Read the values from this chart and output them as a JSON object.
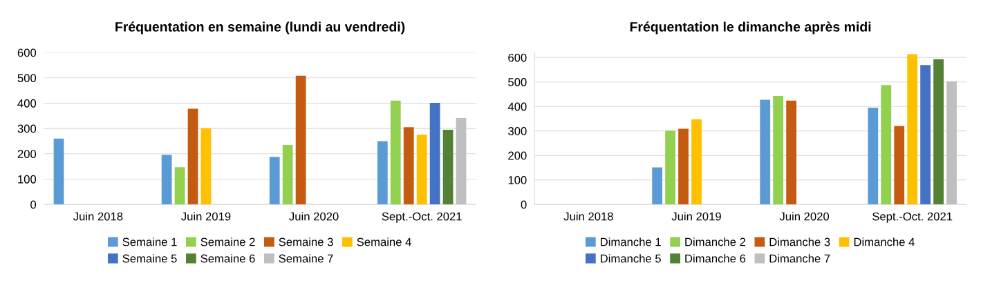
{
  "chart_data": [
    {
      "type": "bar",
      "title": "Fréquentation en semaine (lundi au vendredi)",
      "categories": [
        "Juin 2018",
        "Juin 2019",
        "Juin 2020",
        "Sept.-Oct. 2021"
      ],
      "ylim": [
        0,
        600
      ],
      "yticks": [
        0,
        100,
        200,
        300,
        400,
        500,
        600
      ],
      "grid": "y",
      "legend": "bottom",
      "series": [
        {
          "name": "Semaine 1",
          "color": "#5b9bd5",
          "values": [
            260,
            196,
            188,
            250
          ]
        },
        {
          "name": "Semaine 2",
          "color": "#92d050",
          "values": [
            null,
            147,
            235,
            410
          ]
        },
        {
          "name": "Semaine 3",
          "color": "#c55a11",
          "values": [
            null,
            378,
            508,
            305
          ]
        },
        {
          "name": "Semaine 4",
          "color": "#ffc000",
          "values": [
            null,
            301,
            null,
            276
          ]
        },
        {
          "name": "Semaine 5",
          "color": "#4472c4",
          "values": [
            null,
            null,
            null,
            401
          ]
        },
        {
          "name": "Semaine 6",
          "color": "#548235",
          "values": [
            null,
            null,
            null,
            295
          ]
        },
        {
          "name": "Semaine 7",
          "color": "#bfbfbf",
          "values": [
            null,
            null,
            null,
            341
          ]
        }
      ]
    },
    {
      "type": "bar",
      "title": "Fréquentation le dimanche après midi",
      "categories": [
        "Juin 2018",
        "Juin 2019",
        "Juin 2020",
        "Sept.-Oct. 2021"
      ],
      "ylim": [
        0,
        620
      ],
      "yticks": [
        0,
        100,
        200,
        300,
        400,
        500,
        600
      ],
      "grid": "y",
      "legend": "bottom",
      "series": [
        {
          "name": "Dimanche 1",
          "color": "#5b9bd5",
          "values": [
            null,
            151,
            427,
            395
          ]
        },
        {
          "name": "Dimanche 2",
          "color": "#92d050",
          "values": [
            null,
            301,
            443,
            487
          ]
        },
        {
          "name": "Dimanche 3",
          "color": "#c55a11",
          "values": [
            null,
            309,
            424,
            320
          ]
        },
        {
          "name": "Dimanche 4",
          "color": "#ffc000",
          "values": [
            null,
            348,
            null,
            613
          ]
        },
        {
          "name": "Dimanche 5",
          "color": "#4472c4",
          "values": [
            null,
            null,
            null,
            569
          ]
        },
        {
          "name": "Dimanche 6",
          "color": "#548235",
          "values": [
            null,
            null,
            null,
            593
          ]
        },
        {
          "name": "Dimanche 7",
          "color": "#bfbfbf",
          "values": [
            null,
            null,
            null,
            503
          ]
        }
      ]
    }
  ]
}
